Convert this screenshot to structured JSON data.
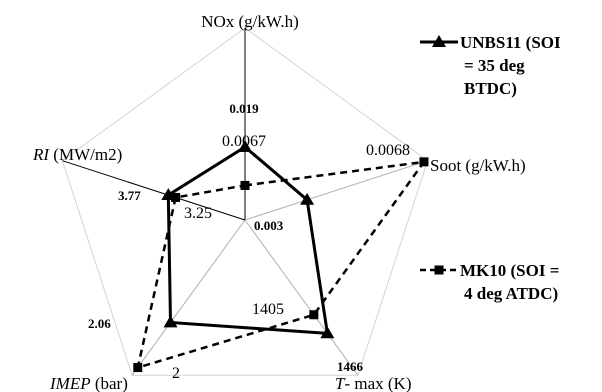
{
  "chart_data": {
    "type": "radar",
    "axes": [
      {
        "key": "nox",
        "label": "NOx (g/kW.h)",
        "label_italic": "",
        "label_rest": ""
      },
      {
        "key": "soot",
        "label": "Soot (g/kW.h)",
        "label_italic": "",
        "label_rest": ""
      },
      {
        "key": "tmax",
        "label": "",
        "label_italic": "T",
        "label_rest": "- max (K)"
      },
      {
        "key": "imep",
        "label": "",
        "label_italic": "IMEP",
        "label_rest": " (bar)"
      },
      {
        "key": "ri",
        "label": "",
        "label_italic": "RI",
        "label_rest": " (MW/m2)"
      }
    ],
    "series": [
      {
        "name": "UNBS11 (SOI = 35 deg BTDC)",
        "legend_lines": [
          "UNBS11 (SOI",
          "= 35 deg",
          "BTDC)"
        ],
        "line_style": "solid",
        "marker": "triangle",
        "color": "#000000",
        "labels": {
          "nox": "0.019",
          "soot": "0.003",
          "tmax": "1466",
          "imep": "2.06",
          "ri": "3.77"
        },
        "radius_fraction": {
          "nox": 0.38,
          "soot": 0.34,
          "tmax": 0.73,
          "imep": 0.66,
          "ri": 0.42
        }
      },
      {
        "name": "MK10 (SOI = 4 deg ATDC)",
        "legend_lines": [
          "MK10 (SOI =",
          "4 deg ATDC)"
        ],
        "line_style": "dashed",
        "marker": "square",
        "color": "#000000",
        "labels": {
          "nox": "0.0067",
          "soot": "0.0068",
          "tmax": "1405",
          "imep": "2",
          "ri": "3.25"
        },
        "radius_fraction": {
          "nox": 0.18,
          "soot": 0.98,
          "tmax": 0.61,
          "imep": 0.95,
          "ri": 0.38
        }
      }
    ]
  }
}
